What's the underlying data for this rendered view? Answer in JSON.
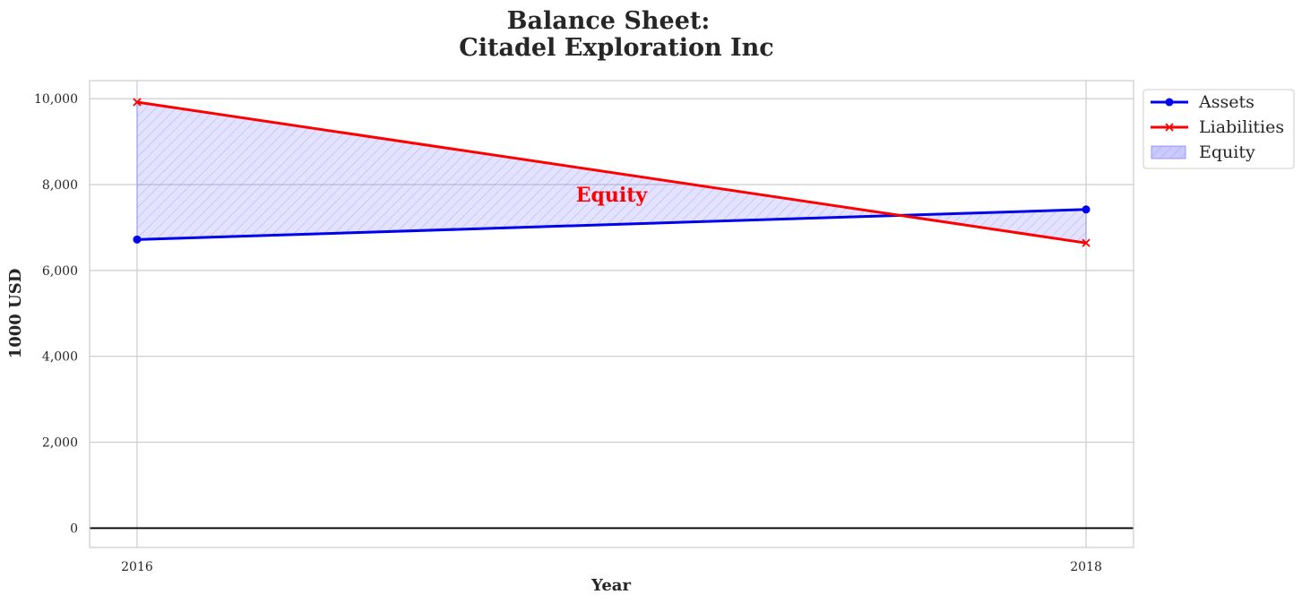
{
  "chart_data": {
    "type": "line",
    "title": "Balance Sheet:",
    "subtitle": "Citadel Exploration Inc",
    "xlabel": "Year",
    "ylabel": "1000 USD",
    "x": [
      2016,
      2018
    ],
    "x_tick_labels": [
      "2016",
      "2018"
    ],
    "ylim": [
      -450,
      10420
    ],
    "y_ticks": [
      0,
      2000,
      4000,
      6000,
      8000,
      10000
    ],
    "y_tick_labels": [
      "0",
      "2,000",
      "4,000",
      "6,000",
      "8,000",
      "10,000"
    ],
    "series": [
      {
        "name": "Assets",
        "values": [
          6720,
          7420
        ],
        "color": "#0000ee",
        "marker": "circle"
      },
      {
        "name": "Liabilities",
        "values": [
          9920,
          6640
        ],
        "color": "#ff0000",
        "marker": "x"
      }
    ],
    "fill": {
      "name": "Equity",
      "between": [
        "Assets",
        "Liabilities"
      ],
      "color": "#6666ff",
      "hatch": "diagonal"
    },
    "annotation": {
      "text": "Equity",
      "x": 2017,
      "y": 7600,
      "color": "#ff0000"
    },
    "legend": {
      "placement": "outside-top-right",
      "entries": [
        "Assets",
        "Liabilities",
        "Equity"
      ]
    },
    "grid": true,
    "zero_line": true
  }
}
